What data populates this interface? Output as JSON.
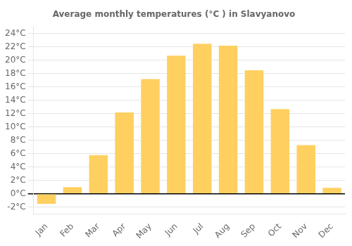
{
  "chart_data": {
    "type": "bar",
    "title": "Average monthly temperatures (°C ) in Slavyanovo",
    "categories": [
      "Jan",
      "Feb",
      "Mar",
      "Apr",
      "May",
      "Jun",
      "Jul",
      "Aug",
      "Sep",
      "Oct",
      "Nov",
      "Dec"
    ],
    "values": [
      -1.5,
      1.0,
      5.8,
      12.2,
      17.2,
      20.7,
      22.5,
      22.2,
      18.5,
      12.7,
      7.3,
      0.9
    ],
    "color": "#FFD060",
    "ylim": [
      -3,
      25
    ],
    "yticks": [
      {
        "value": -2,
        "label": "-2°C"
      },
      {
        "value": 0,
        "label": "0°C"
      },
      {
        "value": 2,
        "label": "2°C"
      },
      {
        "value": 4,
        "label": "4°C"
      },
      {
        "value": 6,
        "label": "6°C"
      },
      {
        "value": 8,
        "label": "8°C"
      },
      {
        "value": 10,
        "label": "10°C"
      },
      {
        "value": 12,
        "label": "12°C"
      },
      {
        "value": 14,
        "label": "14°C"
      },
      {
        "value": 16,
        "label": "16°C"
      },
      {
        "value": 18,
        "label": "18°C"
      },
      {
        "value": 20,
        "label": "20°C"
      },
      {
        "value": 22,
        "label": "22°C"
      },
      {
        "value": 24,
        "label": "24°C"
      }
    ],
    "grid": true
  }
}
